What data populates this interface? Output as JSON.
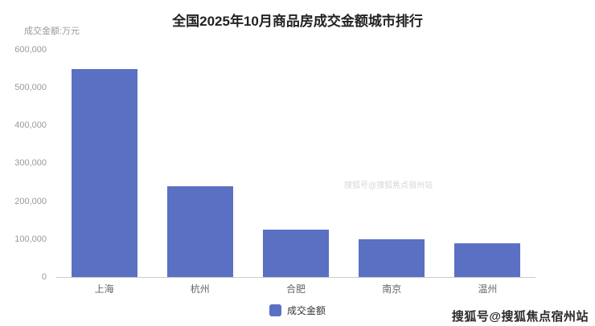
{
  "title": "全国2025年10月商品房成交金额城市排行",
  "axis_unit_label": "成交金额:万元",
  "legend": {
    "label": "成交金额"
  },
  "watermark": "搜狐号@搜狐焦点宿州站",
  "chart_data": {
    "type": "bar",
    "title": "全国2025年10月商品房成交金额城市排行",
    "categories": [
      "上海",
      "杭州",
      "合肥",
      "南京",
      "温州"
    ],
    "values": [
      550000,
      240000,
      125000,
      100000,
      90000
    ],
    "series": [
      {
        "name": "成交金额",
        "values": [
          550000,
          240000,
          125000,
          100000,
          90000
        ]
      }
    ],
    "xlabel": "",
    "ylabel": "成交金额:万元",
    "ylim": [
      0,
      600000
    ],
    "yticks": [
      "600,000",
      "500,000",
      "400,000",
      "300,000",
      "200,000",
      "100,000",
      "0"
    ],
    "grid": false,
    "legend_position": "bottom",
    "bar_color": "#5a70c2",
    "axis_line_color": "#cccccc"
  }
}
